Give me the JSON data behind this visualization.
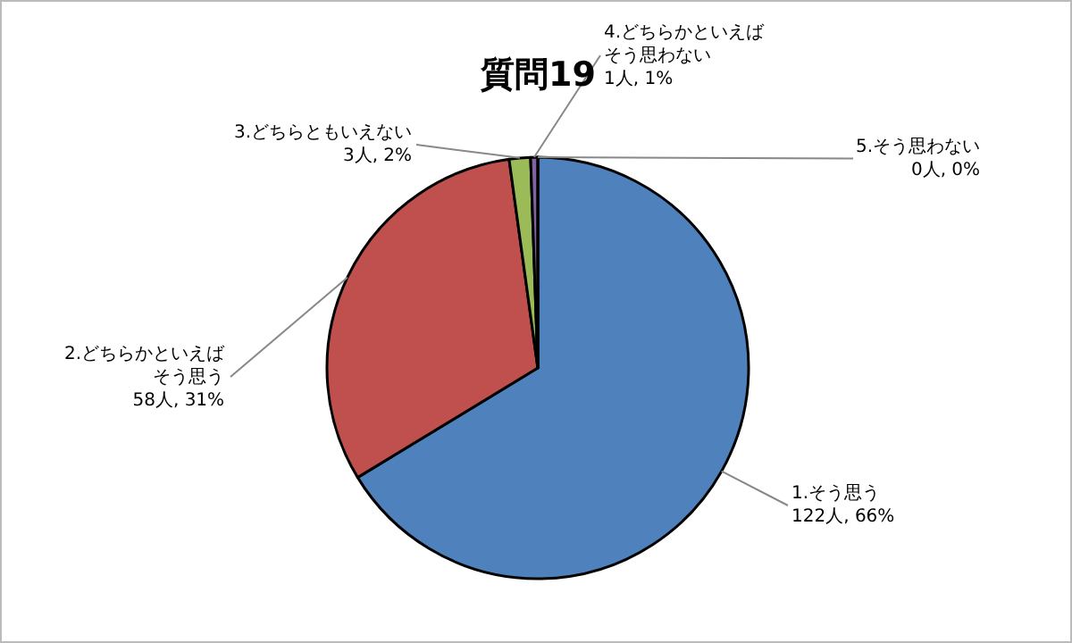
{
  "chart_data": {
    "type": "pie",
    "title": "質問19",
    "categories": [
      "1.そう思う",
      "2.どちらかといえばそう思う",
      "3.どちらともいえない",
      "4.どちらかといえばそう思わない",
      "5.そう思わない"
    ],
    "values": [
      122,
      58,
      3,
      1,
      0
    ],
    "value_labels": [
      "122人, 66%",
      "58人, 31%",
      "3人, 2%",
      "1人, 1%",
      "0人, 0%"
    ],
    "colors": [
      "#4f81bd",
      "#c0504d",
      "#9bbb59",
      "#8064a2",
      "#4bacc6"
    ],
    "legend": false
  }
}
